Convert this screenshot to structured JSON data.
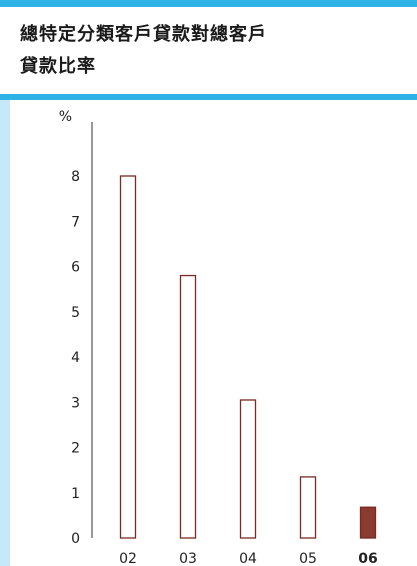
{
  "header": {
    "title_line1": "總特定分類客戶貸款對總客戶",
    "title_line2": "貸款比率",
    "accent_color": "#2fb3e6",
    "band_color": "#c7e8f8"
  },
  "chart_data": {
    "type": "bar",
    "title": "總特定分類客戶貸款對總客戶貸款比率",
    "ylabel": "%",
    "xlabel": "",
    "categories": [
      "02",
      "03",
      "04",
      "05",
      "06"
    ],
    "values": [
      8.0,
      5.8,
      3.05,
      1.35,
      0.68
    ],
    "highlight_index": 4,
    "ylim": [
      0,
      8.5
    ],
    "yticks": [
      0,
      1,
      2,
      3,
      4,
      5,
      6,
      7,
      8
    ],
    "grid": false,
    "colors": {
      "outline": "#7a2a24",
      "fill_normal": "#ffffff",
      "fill_highlight": "#8b3a2f"
    }
  }
}
